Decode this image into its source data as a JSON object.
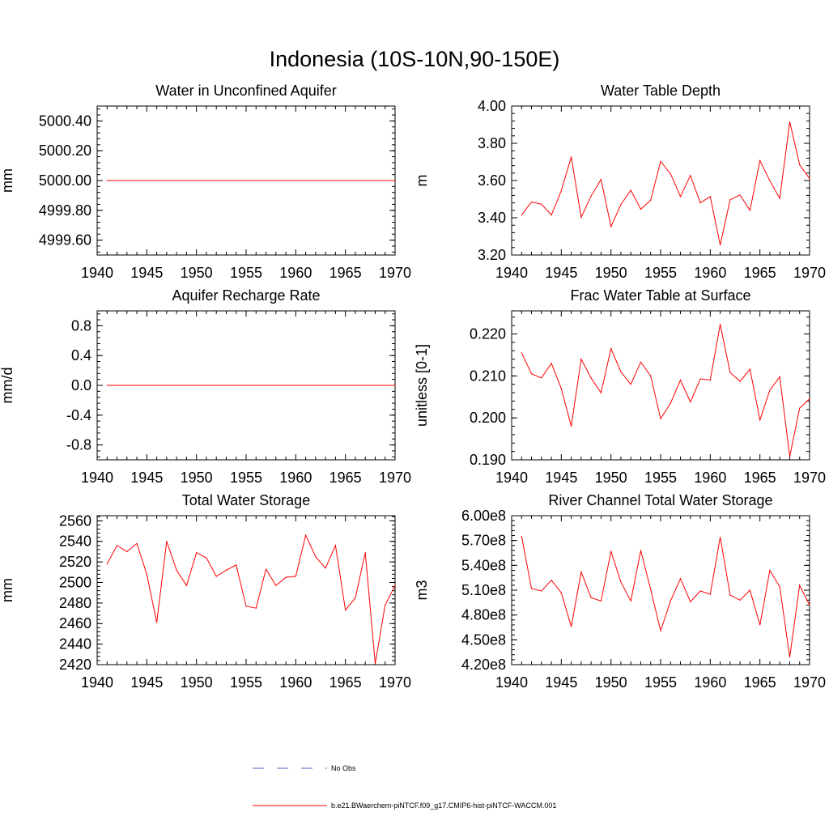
{
  "figure": {
    "title": "Indonesia (10S-10N,90-150E)"
  },
  "colors": {
    "model_line": "#ff0000",
    "obs_line": "#4a5fb4",
    "axis": "#000000"
  },
  "legend": {
    "entries": [
      {
        "label": "No Obs",
        "style": "dashed",
        "color": "#4a5fb4"
      },
      {
        "label": "b.e21.BWaerchem-piNTCF.f09_g17.CMIP6-hist-piNTCF-WACCM.001",
        "style": "solid",
        "color": "#ff0000"
      }
    ]
  },
  "chart_data": [
    {
      "type": "line",
      "title": "Water in Unconfined Aquifer",
      "ylabel": "mm",
      "xlim": [
        1940,
        1970
      ],
      "ylim": [
        4999.5,
        5000.5
      ],
      "xticks": [
        1940,
        1945,
        1950,
        1955,
        1960,
        1965,
        1970
      ],
      "yticks": [
        4999.6,
        4999.8,
        5000.0,
        5000.2,
        5000.4
      ],
      "yticklabels": [
        "4999.60",
        "4999.80",
        "5000.00",
        "5000.20",
        "5000.40"
      ],
      "x": [
        1941,
        1970
      ],
      "values": [
        5000.0,
        5000.0
      ]
    },
    {
      "type": "line",
      "title": "Water Table Depth",
      "ylabel": "m",
      "xlim": [
        1940,
        1970
      ],
      "ylim": [
        3.2,
        4.0
      ],
      "xticks": [
        1940,
        1945,
        1950,
        1955,
        1960,
        1965,
        1970
      ],
      "yticks": [
        3.2,
        3.4,
        3.6,
        3.8,
        4.0
      ],
      "yticklabels": [
        "3.20",
        "3.40",
        "3.60",
        "3.80",
        "4.00"
      ],
      "x": [
        1941,
        1942,
        1943,
        1944,
        1945,
        1946,
        1947,
        1948,
        1949,
        1950,
        1951,
        1952,
        1953,
        1954,
        1955,
        1956,
        1957,
        1958,
        1959,
        1960,
        1961,
        1962,
        1963,
        1964,
        1965,
        1966,
        1967,
        1968,
        1969,
        1970
      ],
      "values": [
        3.415,
        3.485,
        3.473,
        3.415,
        3.545,
        3.727,
        3.402,
        3.516,
        3.606,
        3.352,
        3.471,
        3.548,
        3.446,
        3.494,
        3.703,
        3.636,
        3.514,
        3.627,
        3.48,
        3.514,
        3.254,
        3.497,
        3.522,
        3.44,
        3.707,
        3.599,
        3.504,
        3.915,
        3.685,
        3.61
      ]
    },
    {
      "type": "line",
      "title": "Aquifer Recharge Rate",
      "ylabel": "mm/d",
      "xlim": [
        1940,
        1970
      ],
      "ylim": [
        -1.0,
        1.0
      ],
      "xticks": [
        1940,
        1945,
        1950,
        1955,
        1960,
        1965,
        1970
      ],
      "yticks": [
        -0.8,
        -0.4,
        0.0,
        0.4,
        0.8
      ],
      "yticklabels": [
        "-0.8",
        "-0.4",
        "0.0",
        "0.4",
        "0.8"
      ],
      "x": [
        1941,
        1970
      ],
      "values": [
        0.0,
        0.0
      ]
    },
    {
      "type": "line",
      "title": "Frac Water Table at Surface",
      "ylabel": "unitless [0-1]",
      "xlim": [
        1940,
        1970
      ],
      "ylim": [
        0.19,
        0.2255
      ],
      "xticks": [
        1940,
        1945,
        1950,
        1955,
        1960,
        1965,
        1970
      ],
      "yticks": [
        0.19,
        0.2,
        0.21,
        0.22
      ],
      "yticklabels": [
        "0.190",
        "0.200",
        "0.210",
        "0.220"
      ],
      "x": [
        1941,
        1942,
        1943,
        1944,
        1945,
        1946,
        1947,
        1948,
        1949,
        1950,
        1951,
        1952,
        1953,
        1954,
        1955,
        1956,
        1957,
        1958,
        1959,
        1960,
        1961,
        1962,
        1963,
        1964,
        1965,
        1966,
        1967,
        1968,
        1969,
        1970
      ],
      "values": [
        0.2155,
        0.2105,
        0.2095,
        0.213,
        0.207,
        0.198,
        0.214,
        0.2095,
        0.206,
        0.2165,
        0.211,
        0.208,
        0.2133,
        0.21,
        0.1998,
        0.2035,
        0.209,
        0.2038,
        0.2093,
        0.209,
        0.2223,
        0.2108,
        0.2087,
        0.2116,
        0.1995,
        0.2066,
        0.2098,
        0.1908,
        0.2023,
        0.2045
      ]
    },
    {
      "type": "line",
      "title": "Total Water Storage",
      "ylabel": "mm",
      "xlim": [
        1940,
        1970
      ],
      "ylim": [
        2420,
        2565
      ],
      "xticks": [
        1940,
        1945,
        1950,
        1955,
        1960,
        1965,
        1970
      ],
      "yticks": [
        2420,
        2440,
        2460,
        2480,
        2500,
        2520,
        2540,
        2560
      ],
      "yticklabels": [
        "2420",
        "2440",
        "2460",
        "2480",
        "2500",
        "2520",
        "2540",
        "2560"
      ],
      "x": [
        1941,
        1942,
        1943,
        1944,
        1945,
        1946,
        1947,
        1948,
        1949,
        1950,
        1951,
        1952,
        1953,
        1954,
        1955,
        1956,
        1957,
        1958,
        1959,
        1960,
        1961,
        1962,
        1963,
        1964,
        1965,
        1966,
        1967,
        1968,
        1969,
        1970
      ],
      "values": [
        2518,
        2536,
        2530,
        2538,
        2508,
        2461,
        2540,
        2512,
        2497,
        2529,
        2524,
        2506,
        2512,
        2517,
        2477,
        2475,
        2513,
        2497,
        2505,
        2506,
        2546,
        2525,
        2514,
        2536,
        2473,
        2485,
        2529,
        2421,
        2478,
        2497
      ]
    },
    {
      "type": "line",
      "title": "River Channel Total Water Storage",
      "ylabel": "m3",
      "xlim": [
        1940,
        1970
      ],
      "ylim": [
        420000000.0,
        600000000.0
      ],
      "xticks": [
        1940,
        1945,
        1950,
        1955,
        1960,
        1965,
        1970
      ],
      "yticks": [
        420000000.0,
        450000000.0,
        480000000.0,
        510000000.0,
        540000000.0,
        570000000.0,
        600000000.0
      ],
      "yticklabels": [
        "4.20e8",
        "4.50e8",
        "4.80e8",
        "5.10e8",
        "5.40e8",
        "5.70e8",
        "6.00e8"
      ],
      "x": [
        1941,
        1942,
        1943,
        1944,
        1945,
        1946,
        1947,
        1948,
        1949,
        1950,
        1951,
        1952,
        1953,
        1954,
        1955,
        1956,
        1957,
        1958,
        1959,
        1960,
        1961,
        1962,
        1963,
        1964,
        1965,
        1966,
        1967,
        1968,
        1969,
        1970
      ],
      "values": [
        575000000.0,
        512000000.0,
        509000000.0,
        522000000.0,
        507000000.0,
        466000000.0,
        532000000.0,
        501000000.0,
        497000000.0,
        557000000.0,
        520000000.0,
        497000000.0,
        558000000.0,
        511000000.0,
        461000000.0,
        497000000.0,
        524000000.0,
        496000000.0,
        509000000.0,
        505000000.0,
        574000000.0,
        504000000.0,
        498000000.0,
        510000000.0,
        468000000.0,
        534000000.0,
        514000000.0,
        429000000.0,
        516000000.0,
        492000000.0
      ]
    }
  ]
}
